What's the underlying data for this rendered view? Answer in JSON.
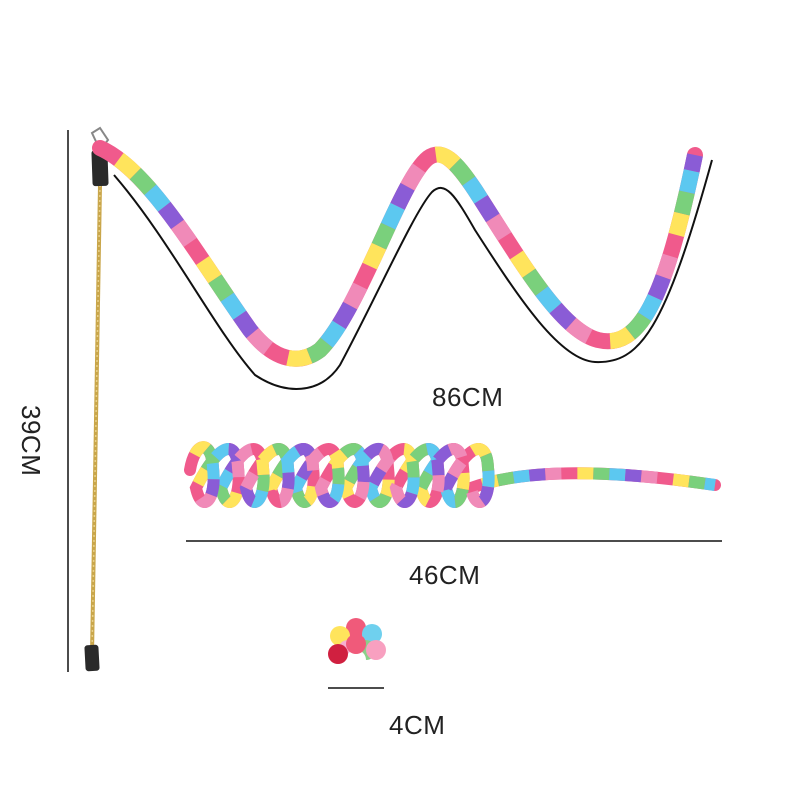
{
  "labels": {
    "wand_length": "39CM",
    "wave_length": "86CM",
    "spring_length": "46CM",
    "ball_size": "4CM"
  },
  "colors": {
    "stripes": [
      "#f05a8c",
      "#ffe45c",
      "#7ad07c",
      "#5cc8f0",
      "#8a5cd6",
      "#f08ab8"
    ],
    "line": "#111111",
    "rod": "#c9a64a",
    "cap": "#2a2a2a",
    "ball": [
      "#f05a7a",
      "#ffe45c",
      "#6fd0ee",
      "#f7b0d0",
      "#8ad08a",
      "#ffffff",
      "#d02040",
      "#f8a0c0"
    ]
  }
}
